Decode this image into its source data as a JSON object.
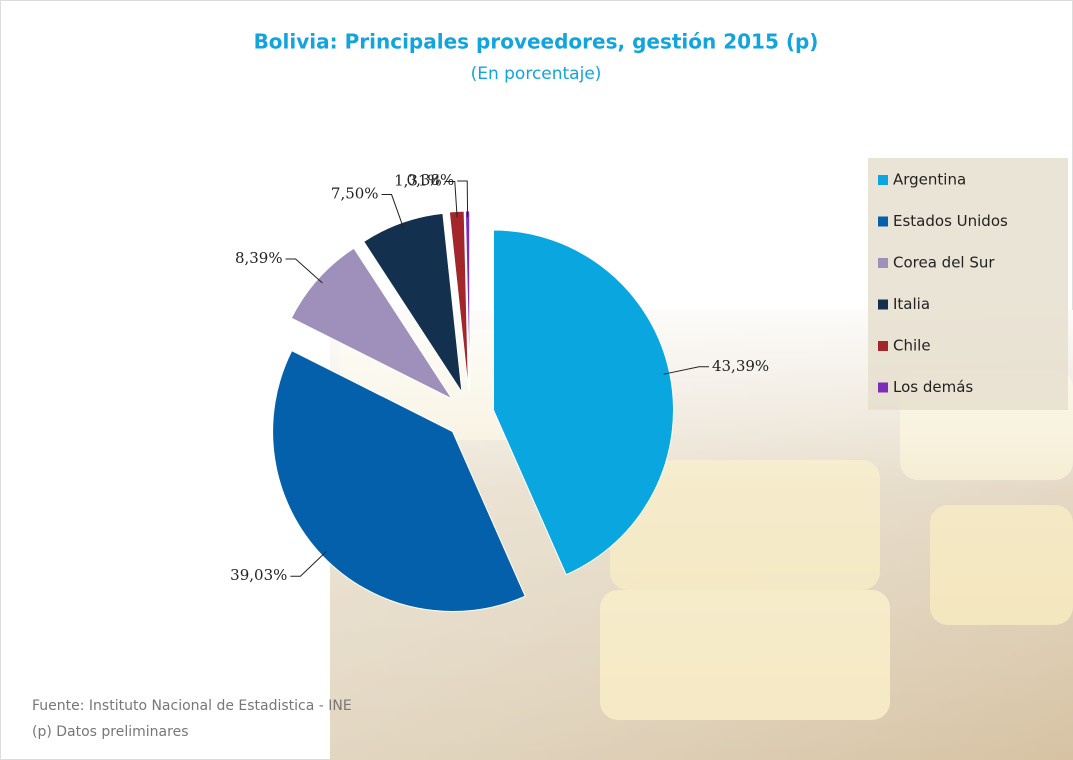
{
  "chart_data": {
    "type": "pie",
    "title": "Bolivia: Principales proveedores, gestión 2015 (p)",
    "subtitle": "(En porcentaje)",
    "categories": [
      "Argentina",
      "Estados Unidos",
      "Corea del Sur",
      "Italia",
      "Chile",
      "Los demás"
    ],
    "values": [
      43.39,
      39.03,
      8.39,
      7.5,
      1.31,
      0.38
    ],
    "value_labels": [
      "43,39%",
      "39,03%",
      "8,39%",
      "7,50%",
      "1,31%",
      "0,38%"
    ],
    "colors": [
      "#0aa6e0",
      "#0560ab",
      "#9e90bb",
      "#14304f",
      "#a3262b",
      "#7b2fb8"
    ],
    "notes": [
      "Fuente: Instituto Nacional de Estadistica - INE",
      "(p) Datos preliminares"
    ]
  }
}
